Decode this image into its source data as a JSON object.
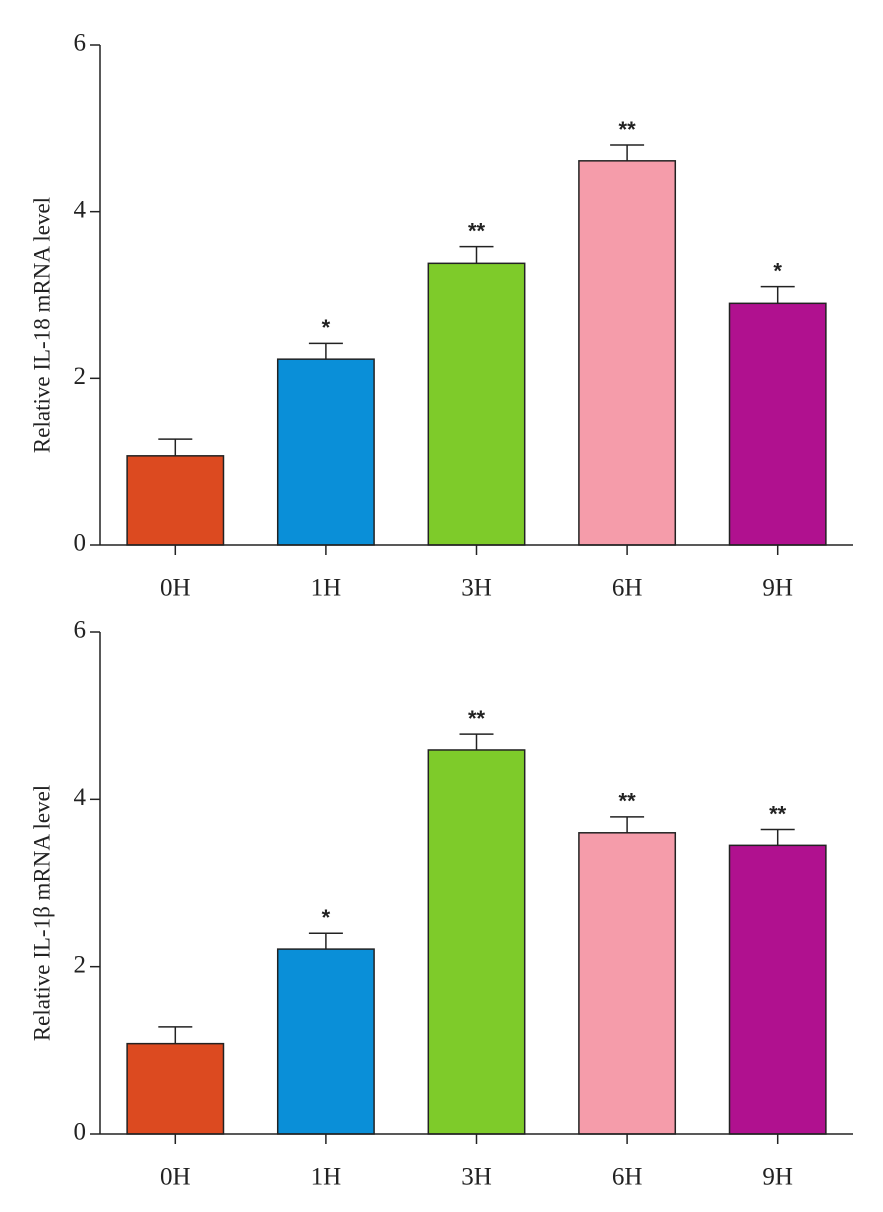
{
  "chart_data": [
    {
      "type": "bar",
      "y_label": "Relative IL-18 mRNA level",
      "categories": [
        "0H",
        "1H",
        "3H",
        "6H",
        "9H"
      ],
      "values": [
        1.07,
        2.23,
        3.38,
        4.61,
        2.9
      ],
      "errors": [
        0.2,
        0.19,
        0.2,
        0.19,
        0.2
      ],
      "annotations": [
        null,
        "*",
        "**",
        "**",
        "*"
      ],
      "colors": [
        "#dc4a20",
        "#0a8fd8",
        "#7ecb2a",
        "#f59caa",
        "#b0118f"
      ],
      "ylim": [
        0,
        6
      ],
      "yticks": [
        0,
        2,
        4,
        6
      ]
    },
    {
      "type": "bar",
      "y_label": "Relative IL-1β mRNA level",
      "categories": [
        "0H",
        "1H",
        "3H",
        "6H",
        "9H"
      ],
      "values": [
        1.08,
        2.21,
        4.59,
        3.6,
        3.45
      ],
      "errors": [
        0.2,
        0.19,
        0.19,
        0.19,
        0.19
      ],
      "annotations": [
        null,
        "*",
        "**",
        "**",
        "**"
      ],
      "colors": [
        "#dc4a20",
        "#0a8fd8",
        "#7ecb2a",
        "#f59caa",
        "#b0118f"
      ],
      "ylim": [
        0,
        6
      ],
      "yticks": [
        0,
        2,
        4,
        6
      ]
    }
  ]
}
